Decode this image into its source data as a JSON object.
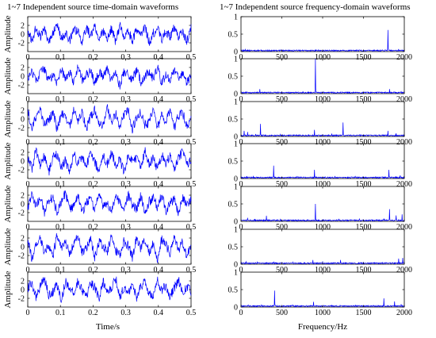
{
  "titles": {
    "left": "1~7 Independent source time-domain waveforms",
    "right": "1~7 Independent source frequency-domain waveforms"
  },
  "colors": {
    "signal": "#0000ff",
    "axis": "#000000",
    "background": "#ffffff"
  },
  "chart_data": [
    {
      "type": "line",
      "title": "1~7 Independent source time-domain waveforms",
      "xlabel": "Time/s",
      "ylabel": "Amplitude",
      "xlim": [
        0,
        0.5
      ],
      "ylim": [
        -4,
        4
      ],
      "xticks": [
        "0",
        "0.1",
        "0.2",
        "0.3",
        "0.4",
        "0.5"
      ],
      "yticks": [
        "-2",
        "0",
        "2"
      ],
      "grid": false,
      "series": [
        {
          "values": [
            0.9,
            -1.5,
            1.6,
            -0.6,
            1.2,
            -1.8,
            0.4,
            1.9,
            -1.1,
            0.3,
            -1.6,
            1.0,
            0.8,
            -2.0,
            1.4,
            -0.3,
            1.7,
            -1.2,
            0.5,
            -0.9,
            1.3,
            -1.7,
            2.0,
            -0.4,
            0.6,
            -1.4,
            1.1,
            -0.8,
            1.8,
            -1.9,
            0.2,
            1.5,
            -1.3,
            0.7,
            -0.5,
            1.6,
            -1.0,
            0.9,
            -1.8,
            1.2
          ]
        },
        {
          "values": [
            -0.4,
            1.1,
            -0.9,
            0.6,
            1.7,
            -1.2,
            0.3,
            -1.8,
            1.5,
            -0.5,
            0.8,
            -1.4,
            2.2,
            -0.7,
            0.4,
            1.3,
            -1.6,
            0.9,
            -0.2,
            1.8,
            -1.1,
            0.5,
            -2.3,
            1.0,
            0.7,
            -0.8,
            1.6,
            -1.3,
            0.2,
            1.2,
            -0.6,
            1.9,
            -1.5,
            0.4,
            -1.0,
            1.4,
            -0.3,
            0.8,
            -1.7,
            0.6
          ]
        },
        {
          "values": [
            1.8,
            -2.1,
            0.7,
            2.3,
            -1.4,
            -0.6,
            1.9,
            -2.4,
            1.2,
            0.3,
            -1.8,
            2.1,
            -0.9,
            1.5,
            -2.2,
            0.6,
            2.0,
            -1.1,
            -1.7,
            2.4,
            -0.5,
            1.3,
            -2.0,
            0.9,
            1.7,
            -2.3,
            0.4,
            1.6,
            -1.3,
            -0.8,
            2.2,
            -1.9,
            1.0,
            -0.4,
            1.8,
            -2.1,
            0.8,
            1.4,
            -1.6,
            0.5
          ]
        },
        {
          "values": [
            0.6,
            -1.7,
            2.5,
            -0.9,
            1.2,
            -2.6,
            0.8,
            1.6,
            -1.3,
            0.2,
            -2.4,
            1.9,
            -0.7,
            1.1,
            -1.5,
            2.6,
            -0.4,
            -1.9,
            1.4,
            -0.6,
            2.1,
            -1.2,
            0.5,
            -2.7,
            1.7,
            -0.3,
            1.0,
            -1.6,
            2.3,
            -0.8,
            0.9,
            -2.0,
            1.5,
            -0.5,
            1.3,
            -1.8,
            0.7,
            2.0,
            -1.1,
            0.4
          ]
        },
        {
          "values": [
            -1.2,
            2.2,
            -0.5,
            1.6,
            -2.3,
            0.9,
            1.3,
            -1.8,
            0.4,
            2.5,
            -1.0,
            -0.7,
            1.9,
            -2.2,
            0.6,
            1.1,
            -1.5,
            2.7,
            -0.8,
            0.3,
            -2.0,
            1.4,
            0.7,
            -1.6,
            2.1,
            -0.4,
            -1.3,
            1.8,
            -2.4,
            0.5,
            1.5,
            -0.9,
            2.3,
            -1.7,
            0.2,
            1.0,
            -2.1,
            1.6,
            -0.6,
            0.8
          ]
        },
        {
          "values": [
            1.5,
            -2.8,
            0.9,
            2.2,
            -1.6,
            0.3,
            -2.3,
            2.9,
            -0.7,
            1.4,
            -1.9,
            0.6,
            2.5,
            -1.1,
            -0.4,
            1.8,
            -2.6,
            1.0,
            0.5,
            -1.5,
            2.7,
            -0.9,
            -2.0,
            1.3,
            0.2,
            -2.4,
            2.1,
            -0.6,
            1.7,
            -1.2,
            0.8,
            -2.9,
            1.9,
            0.4,
            -1.4,
            2.3,
            -0.8,
            1.1,
            -2.2,
            0.7
          ]
        },
        {
          "values": [
            0.3,
            1.6,
            -1.9,
            0.8,
            2.4,
            -1.3,
            -0.6,
            1.2,
            -2.5,
            1.7,
            0.5,
            -1.1,
            2.0,
            -0.4,
            -1.8,
            1.4,
            0.7,
            -2.2,
            1.9,
            -0.9,
            0.2,
            2.6,
            -1.6,
            0.6,
            -1.0,
            1.5,
            -2.1,
            0.9,
            1.8,
            -0.7,
            -1.4,
            2.2,
            -0.3,
            1.0,
            -1.7,
            0.4,
            2.3,
            -1.2,
            0.8,
            -0.5
          ]
        }
      ]
    },
    {
      "type": "line",
      "title": "1~7 Independent source frequency-domain waveforms",
      "xlabel": "Frequency/Hz",
      "ylabel": "",
      "xlim": [
        0,
        2000
      ],
      "ylim": [
        0,
        1
      ],
      "xticks": [
        "0",
        "500",
        "1000",
        "1500",
        "2000"
      ],
      "yticks": [
        "0",
        "0.5",
        "1"
      ],
      "grid": false,
      "series": [
        {
          "peaks": [
            [
              55,
              0.06
            ],
            [
              210,
              0.05
            ],
            [
              420,
              0.04
            ],
            [
              700,
              0.04
            ],
            [
              950,
              0.05
            ],
            [
              1220,
              0.04
            ],
            [
              1450,
              0.05
            ],
            [
              1560,
              0.04
            ],
            [
              1800,
              0.62
            ],
            [
              1930,
              0.07
            ]
          ]
        },
        {
          "peaks": [
            [
              60,
              0.05
            ],
            [
              230,
              0.13
            ],
            [
              500,
              0.05
            ],
            [
              760,
              0.05
            ],
            [
              910,
              1.0
            ],
            [
              1150,
              0.04
            ],
            [
              1400,
              0.04
            ],
            [
              1690,
              0.05
            ],
            [
              1820,
              0.13
            ],
            [
              1960,
              0.06
            ]
          ]
        },
        {
          "peaks": [
            [
              40,
              0.16
            ],
            [
              80,
              0.13
            ],
            [
              180,
              0.07
            ],
            [
              240,
              0.36
            ],
            [
              480,
              0.06
            ],
            [
              720,
              0.05
            ],
            [
              900,
              0.19
            ],
            [
              1110,
              0.07
            ],
            [
              1250,
              0.4
            ],
            [
              1450,
              0.05
            ],
            [
              1800,
              0.16
            ],
            [
              1900,
              0.09
            ]
          ]
        },
        {
          "peaks": [
            [
              70,
              0.07
            ],
            [
              150,
              0.06
            ],
            [
              400,
              0.37
            ],
            [
              690,
              0.06
            ],
            [
              900,
              0.25
            ],
            [
              1150,
              0.06
            ],
            [
              1400,
              0.06
            ],
            [
              1650,
              0.06
            ],
            [
              1810,
              0.25
            ],
            [
              1950,
              0.09
            ]
          ]
        },
        {
          "peaks": [
            [
              80,
              0.1
            ],
            [
              170,
              0.07
            ],
            [
              310,
              0.16
            ],
            [
              480,
              0.06
            ],
            [
              700,
              0.05
            ],
            [
              910,
              0.5
            ],
            [
              1200,
              0.06
            ],
            [
              1450,
              0.07
            ],
            [
              1750,
              0.08
            ],
            [
              1820,
              0.35
            ],
            [
              1900,
              0.17
            ],
            [
              1975,
              0.2
            ]
          ]
        },
        {
          "peaks": [
            [
              60,
              0.07
            ],
            [
              200,
              0.06
            ],
            [
              400,
              0.06
            ],
            [
              640,
              0.06
            ],
            [
              880,
              0.12
            ],
            [
              1000,
              0.08
            ],
            [
              1220,
              0.12
            ],
            [
              1500,
              0.06
            ],
            [
              1730,
              0.06
            ],
            [
              1930,
              0.16
            ],
            [
              1980,
              0.18
            ]
          ]
        },
        {
          "peaks": [
            [
              90,
              0.06
            ],
            [
              250,
              0.06
            ],
            [
              410,
              0.47
            ],
            [
              630,
              0.06
            ],
            [
              890,
              0.15
            ],
            [
              1110,
              0.06
            ],
            [
              1400,
              0.06
            ],
            [
              1750,
              0.25
            ],
            [
              1880,
              0.16
            ],
            [
              1960,
              0.08
            ]
          ]
        }
      ]
    }
  ]
}
